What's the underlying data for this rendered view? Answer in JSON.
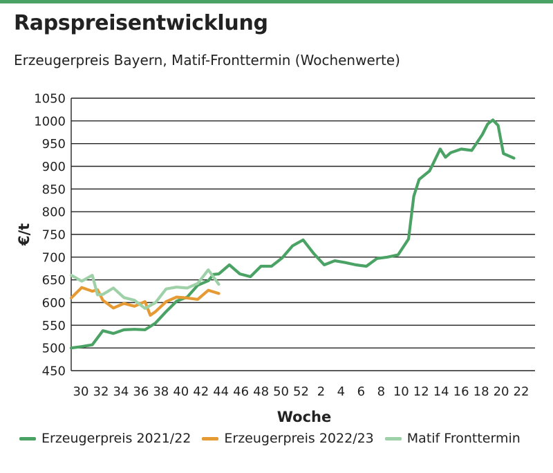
{
  "header": {
    "title": "Rapspreisentwicklung",
    "subtitle": "Erzeugerpreis Bayern, Matif-Fronttermin (Wochenwerte)"
  },
  "colors": {
    "accent": "#4aa364",
    "series_2021_22": "#4aa364",
    "series_2022_23": "#e59a33",
    "series_matif": "#9fd1a8",
    "grid": "#222222"
  },
  "chart_data": {
    "type": "line",
    "xlabel": "Woche",
    "ylabel": "€/t",
    "ylim": [
      450,
      1050
    ],
    "yticks": [
      450,
      500,
      550,
      600,
      650,
      700,
      750,
      800,
      850,
      900,
      950,
      1000,
      1050
    ],
    "x_categories": [
      30,
      31,
      32,
      33,
      34,
      35,
      36,
      37,
      38,
      39,
      40,
      41,
      42,
      43,
      44,
      45,
      46,
      47,
      48,
      49,
      50,
      51,
      52,
      1,
      2,
      3,
      4,
      5,
      6,
      7,
      8,
      9,
      10,
      11,
      12,
      13,
      14,
      15,
      16,
      17,
      18,
      19,
      20,
      21,
      22
    ],
    "x_tick_labels": [
      "30",
      "32",
      "34",
      "36",
      "38",
      "40",
      "42",
      "44",
      "46",
      "48",
      "50",
      "52",
      "2",
      "4",
      "6",
      "8",
      "10",
      "12",
      "14",
      "16",
      "18",
      "20",
      "22"
    ],
    "grid": "horizontal",
    "legend_position": "bottom",
    "series": [
      {
        "name": "Erzeugerpreis 2021/22",
        "points": [
          [
            "30",
            500
          ],
          [
            "31",
            503
          ],
          [
            "32",
            507
          ],
          [
            "33",
            538
          ],
          [
            "34",
            532
          ],
          [
            "35",
            540
          ],
          [
            "36",
            541
          ],
          [
            "37",
            540
          ],
          [
            "38",
            555
          ],
          [
            "39",
            580
          ],
          [
            "40",
            603
          ],
          [
            "41",
            612
          ],
          [
            "42",
            638
          ],
          [
            "43",
            648
          ],
          [
            "43.5",
            662
          ],
          [
            "44",
            663
          ],
          [
            "45",
            683
          ],
          [
            "46",
            663
          ],
          [
            "47",
            657
          ],
          [
            "48",
            680
          ],
          [
            "49",
            680
          ],
          [
            "50",
            698
          ],
          [
            "51",
            725
          ],
          [
            "52",
            738
          ],
          [
            "1",
            708
          ],
          [
            "2",
            683
          ],
          [
            "3",
            692
          ],
          [
            "4",
            688
          ],
          [
            "5",
            683
          ],
          [
            "6",
            680
          ],
          [
            "7",
            697
          ],
          [
            "8",
            700
          ],
          [
            "9",
            705
          ],
          [
            "10",
            740
          ],
          [
            "10.5",
            834
          ],
          [
            "11",
            871
          ],
          [
            "12",
            890
          ],
          [
            "13",
            938
          ],
          [
            "13.5",
            920
          ],
          [
            "14",
            930
          ],
          [
            "15",
            938
          ],
          [
            "16",
            935
          ],
          [
            "17",
            970
          ],
          [
            "17.5",
            993
          ],
          [
            "18",
            1002
          ],
          [
            "18.5",
            990
          ],
          [
            "19",
            928
          ],
          [
            "20",
            918
          ]
        ]
      },
      {
        "name": "Erzeugerpreis 2022/23",
        "points": [
          [
            "30",
            610
          ],
          [
            "31",
            633
          ],
          [
            "32",
            625
          ],
          [
            "32.5",
            628
          ],
          [
            "33",
            605
          ],
          [
            "34",
            588
          ],
          [
            "35",
            598
          ],
          [
            "36",
            592
          ],
          [
            "37",
            602
          ],
          [
            "37.5",
            572
          ],
          [
            "38",
            580
          ],
          [
            "39",
            602
          ],
          [
            "40",
            612
          ],
          [
            "41",
            610
          ],
          [
            "42",
            607
          ],
          [
            "43",
            627
          ],
          [
            "44",
            620
          ]
        ]
      },
      {
        "name": "Matif Fronttermin",
        "points": [
          [
            "30",
            660
          ],
          [
            "31",
            647
          ],
          [
            "32",
            660
          ],
          [
            "32.5",
            617
          ],
          [
            "33",
            618
          ],
          [
            "34",
            632
          ],
          [
            "35",
            611
          ],
          [
            "36",
            605
          ],
          [
            "37",
            587
          ],
          [
            "38",
            600
          ],
          [
            "39",
            630
          ],
          [
            "40",
            634
          ],
          [
            "41",
            632
          ],
          [
            "42",
            642
          ],
          [
            "43",
            672
          ],
          [
            "44",
            640
          ]
        ]
      }
    ]
  },
  "legend": {
    "items": [
      {
        "label": "Erzeugerpreis 2021/22"
      },
      {
        "label": "Erzeugerpreis 2022/23"
      },
      {
        "label": "Matif Fronttermin"
      }
    ]
  }
}
